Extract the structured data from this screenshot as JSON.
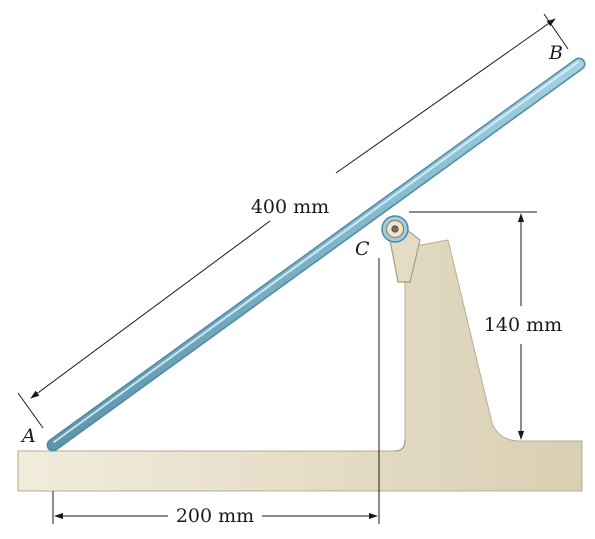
{
  "points": {
    "a": "A",
    "b": "B",
    "c": "C"
  },
  "dimensions": {
    "rod_length": "400 mm",
    "horizontal": "200 mm",
    "height": "140 mm"
  },
  "colors": {
    "rod_fill": "#8fc3d8",
    "rod_edge": "#4f8aa3",
    "ground_fill": "#e9e2cf",
    "ground_edge": "#b7ad90",
    "line": "#1a1a1a"
  }
}
